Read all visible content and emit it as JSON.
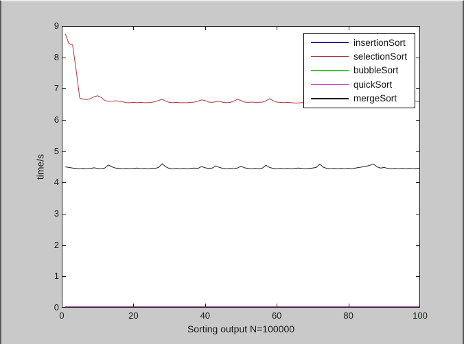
{
  "window": {
    "background": "#c9c9c9",
    "border_left_color": "#5a5a5a",
    "border_right_color": "#565656",
    "border_top_color": "#ececec"
  },
  "chart_data": {
    "type": "line",
    "title": "",
    "xlabel": "Sorting output N=100000",
    "ylabel": "time/s",
    "xlim": [
      0,
      100
    ],
    "ylim": [
      0,
      9
    ],
    "x_ticks": [
      0,
      20,
      40,
      60,
      80,
      100
    ],
    "y_ticks": [
      0,
      1,
      2,
      3,
      4,
      5,
      6,
      7,
      8,
      9
    ],
    "grid": false,
    "box": true,
    "plot_bg": "#ffffff",
    "axis_color": "#1a1a1a",
    "legend_position": "upper-right-inside",
    "x": [
      1,
      2,
      3,
      4,
      5,
      6,
      7,
      8,
      9,
      10,
      11,
      12,
      13,
      14,
      15,
      16,
      17,
      18,
      19,
      20,
      21,
      22,
      23,
      24,
      25,
      26,
      27,
      28,
      29,
      30,
      31,
      32,
      33,
      34,
      35,
      36,
      37,
      38,
      39,
      40,
      41,
      42,
      43,
      44,
      45,
      46,
      47,
      48,
      49,
      50,
      51,
      52,
      53,
      54,
      55,
      56,
      57,
      58,
      59,
      60,
      61,
      62,
      63,
      64,
      65,
      66,
      67,
      68,
      69,
      70,
      71,
      72,
      73,
      74,
      75,
      76,
      77,
      78,
      79,
      80,
      81,
      82,
      83,
      84,
      85,
      86,
      87,
      88,
      89,
      90,
      91,
      92,
      93,
      94,
      95,
      96,
      97,
      98,
      99,
      100
    ],
    "series": [
      {
        "name": "insertionSort",
        "color": "#24248f",
        "const": 0.02
      },
      {
        "name": "selectionSort",
        "color": "#b03535",
        "values": [
          8.75,
          8.44,
          8.4,
          7.6,
          6.7,
          6.66,
          6.65,
          6.68,
          6.74,
          6.77,
          6.72,
          6.62,
          6.6,
          6.6,
          6.61,
          6.6,
          6.58,
          6.55,
          6.55,
          6.56,
          6.55,
          6.56,
          6.55,
          6.55,
          6.56,
          6.58,
          6.62,
          6.66,
          6.6,
          6.56,
          6.55,
          6.56,
          6.55,
          6.55,
          6.55,
          6.56,
          6.57,
          6.6,
          6.64,
          6.62,
          6.57,
          6.56,
          6.58,
          6.6,
          6.56,
          6.55,
          6.56,
          6.6,
          6.66,
          6.62,
          6.57,
          6.56,
          6.57,
          6.56,
          6.56,
          6.57,
          6.61,
          6.68,
          6.61,
          6.57,
          6.56,
          6.55,
          6.56,
          6.55,
          6.54,
          6.54,
          6.55,
          6.56,
          6.55,
          6.56,
          6.55,
          6.56,
          6.55,
          6.56,
          6.55,
          6.56,
          6.57,
          6.56,
          6.55,
          6.56,
          6.55,
          6.56,
          6.57,
          6.58,
          6.57,
          6.56,
          6.57,
          6.56,
          6.55,
          6.56,
          6.57,
          6.58,
          6.6,
          6.62,
          6.6,
          6.58,
          6.6,
          6.62,
          6.6,
          6.58
        ]
      },
      {
        "name": "bubbleSort",
        "color": "#3cc43c",
        "const": 0.03
      },
      {
        "name": "quickSort",
        "color": "#c43cc4",
        "const": 0.04
      },
      {
        "name": "mergeSort",
        "color": "#1c1c1c",
        "values": [
          4.5,
          4.48,
          4.46,
          4.45,
          4.44,
          4.45,
          4.44,
          4.45,
          4.47,
          4.45,
          4.44,
          4.46,
          4.56,
          4.5,
          4.46,
          4.45,
          4.44,
          4.45,
          4.44,
          4.45,
          4.46,
          4.44,
          4.45,
          4.44,
          4.45,
          4.45,
          4.48,
          4.6,
          4.5,
          4.45,
          4.44,
          4.45,
          4.44,
          4.45,
          4.44,
          4.45,
          4.46,
          4.45,
          4.51,
          4.47,
          4.45,
          4.46,
          4.53,
          4.48,
          4.45,
          4.44,
          4.45,
          4.44,
          4.46,
          4.52,
          4.47,
          4.45,
          4.44,
          4.45,
          4.44,
          4.46,
          4.55,
          4.48,
          4.45,
          4.44,
          4.45,
          4.44,
          4.45,
          4.44,
          4.45,
          4.46,
          4.45,
          4.44,
          4.45,
          4.46,
          4.48,
          4.59,
          4.49,
          4.45,
          4.44,
          4.45,
          4.44,
          4.45,
          4.44,
          4.45,
          4.44,
          4.46,
          4.48,
          4.5,
          4.52,
          4.55,
          4.59,
          4.5,
          4.46,
          4.48,
          4.45,
          4.44,
          4.45,
          4.44,
          4.45,
          4.44,
          4.45,
          4.44,
          4.45,
          4.46
        ]
      }
    ]
  }
}
